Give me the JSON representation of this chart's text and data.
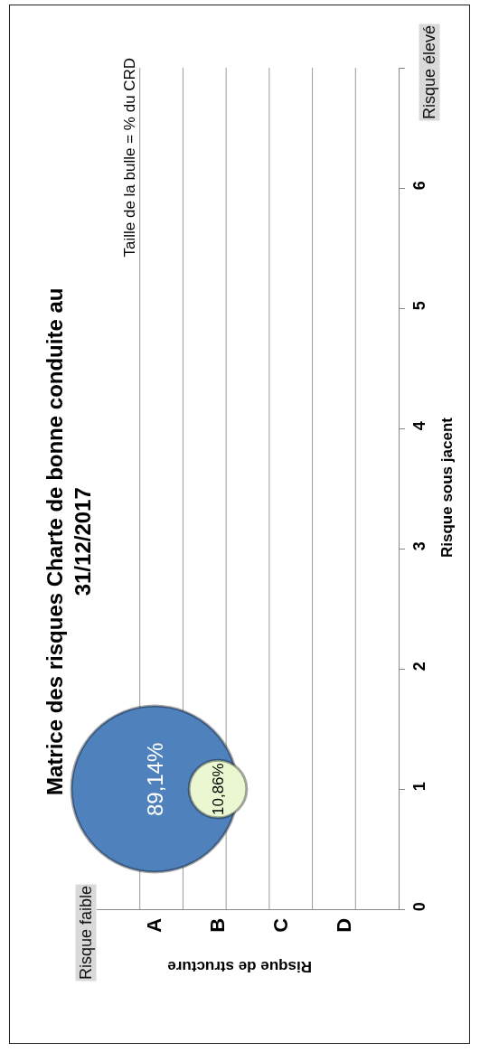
{
  "chart_data": {
    "type": "bubble",
    "title": "Matrice des risques Charte de bonne conduite au 31/12/2017",
    "xlabel": "Risque de structure",
    "ylabel": "Risque sous jacent",
    "categories": [
      "A",
      "B",
      "C",
      "D"
    ],
    "series": [
      {
        "color": "#4f81bd",
        "values": [
          1,
          null,
          null,
          null
        ],
        "sizes": [
          1,
          null,
          null,
          null
        ]
      },
      {
        "color": "#ebf7d0",
        "values": [
          null,
          1,
          null,
          null
        ],
        "sizes": [
          null,
          0.12,
          null,
          null
        ]
      }
    ],
    "ylim": [
      0,
      7
    ],
    "yticks": [
      0,
      1,
      2,
      3,
      4,
      5,
      6,
      {
        "value": 7,
        "label": null
      }
    ],
    "grid": "x",
    "annotations": [
      {
        "text": "89,14%",
        "x": "A",
        "y": 1
      },
      {
        "text": "10,86%",
        "x": "B",
        "y": 1
      },
      "Taille de la bulle = % du CRD",
      "Risque faible",
      "Risque élevé"
    ]
  }
}
